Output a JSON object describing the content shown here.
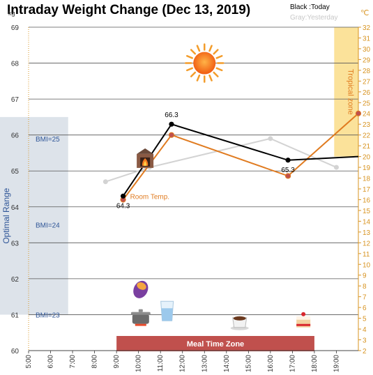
{
  "chart_data": {
    "type": "line",
    "title": "Intraday Weight Change (Dec 13, 2019)",
    "legend": {
      "today": "Black :Today",
      "yesterday": "Gray:Yesterday"
    },
    "y_left": {
      "unit": "kg",
      "min": 60,
      "max": 69,
      "ticks": [
        60,
        61,
        62,
        63,
        64,
        65,
        66,
        67,
        68,
        69
      ]
    },
    "y_right": {
      "unit": "℃",
      "min": 2,
      "max": 32,
      "ticks": [
        2,
        3,
        4,
        5,
        6,
        7,
        8,
        9,
        10,
        11,
        12,
        13,
        14,
        15,
        16,
        17,
        18,
        19,
        20,
        21,
        22,
        23,
        24,
        25,
        26,
        27,
        28,
        29,
        30,
        31,
        32
      ]
    },
    "x": {
      "min": 5,
      "max": 20,
      "ticks": [
        {
          "v": 5,
          "label": "5:00"
        },
        {
          "v": 6,
          "label": "6:00"
        },
        {
          "v": 7,
          "label": "7:00"
        },
        {
          "v": 8,
          "label": "8:00"
        },
        {
          "v": 9,
          "label": "9:00"
        },
        {
          "v": 10,
          "label": "10:00"
        },
        {
          "v": 11,
          "label": "11:00"
        },
        {
          "v": 12,
          "label": "12:00"
        },
        {
          "v": 13,
          "label": "13:00"
        },
        {
          "v": 14,
          "label": "14:00"
        },
        {
          "v": 15,
          "label": "15:00"
        },
        {
          "v": 16,
          "label": "16:00"
        },
        {
          "v": 17,
          "label": "17:00"
        },
        {
          "v": 18,
          "label": "18:00"
        },
        {
          "v": 19,
          "label": "19:00"
        }
      ]
    },
    "series": [
      {
        "name": "Today",
        "axis": "left",
        "color": "#000000",
        "points": [
          [
            9.3,
            64.3
          ],
          [
            11.5,
            66.3
          ],
          [
            16.8,
            65.3
          ],
          [
            20,
            65.4
          ]
        ]
      },
      {
        "name": "Yesterday",
        "axis": "left",
        "color": "#d3d3d3",
        "points": [
          [
            8.5,
            64.7
          ],
          [
            10.5,
            65.1
          ],
          [
            16,
            65.9
          ],
          [
            19,
            65.1
          ]
        ]
      },
      {
        "name": "Room Temp.",
        "axis": "right",
        "color": "#e07b20",
        "points": [
          [
            9.3,
            16
          ],
          [
            11.5,
            22
          ],
          [
            16.8,
            18.2
          ],
          [
            20,
            24
          ]
        ]
      }
    ],
    "data_labels": [
      {
        "text": "64.3",
        "series": 0,
        "point": 0,
        "pos": "below"
      },
      {
        "text": "66.3",
        "series": 0,
        "point": 1,
        "pos": "above"
      },
      {
        "text": "65.3",
        "series": 0,
        "point": 2,
        "pos": "below"
      }
    ],
    "series_label": {
      "text": "Room Temp."
    },
    "optimal_range": {
      "label": "Optimal Range",
      "kg_from": 61,
      "kg_to": 66.5,
      "hour_to": 6.8,
      "bmi_lines": [
        {
          "label": "BMI=25",
          "kg": 65.9
        },
        {
          "label": "BMI=24",
          "kg": 63.5
        },
        {
          "label": "BMI=23",
          "kg": 61.0
        }
      ]
    },
    "tropical_zone": {
      "label": "Tropical zone",
      "celsius_from": 20,
      "celsius_to": 32,
      "hour_from": 18.9
    },
    "meal_time_zone": {
      "label": "Meal Time Zone",
      "hour_from": 9,
      "hour_to": 18
    },
    "icons": [
      {
        "name": "sun-icon",
        "hour": 13,
        "kg": 68
      },
      {
        "name": "fireplace-icon",
        "hour": 10.3,
        "kg": 65.2
      },
      {
        "name": "sweet-potato-icon",
        "hour": 10.1,
        "kg": 61.7
      },
      {
        "name": "cooking-pot-icon",
        "hour": 10.1,
        "kg": 60.9
      },
      {
        "name": "glass-of-water-icon",
        "hour": 11.3,
        "kg": 61.1
      },
      {
        "name": "coffee-cup-icon",
        "hour": 14.6,
        "kg": 60.8
      },
      {
        "name": "cake-icon",
        "hour": 17.5,
        "kg": 60.8
      }
    ],
    "grid": true
  }
}
